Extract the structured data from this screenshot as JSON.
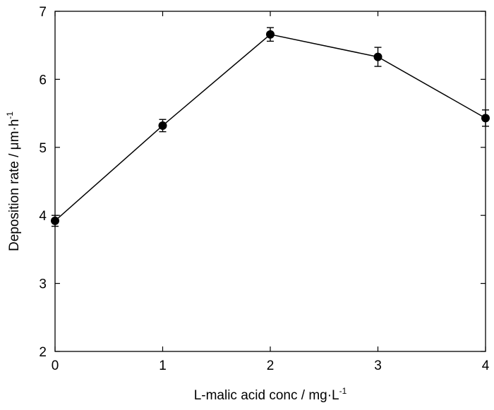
{
  "chart_data": {
    "type": "line",
    "title": "",
    "xlabel": "L-malic acid conc / mg·L",
    "xlabel_superscript": "-1",
    "ylabel": "Deposition rate / μm·h",
    "ylabel_superscript": "-1",
    "xlim": [
      0,
      4
    ],
    "ylim": [
      2,
      7
    ],
    "x_ticks": [
      0,
      1,
      2,
      3,
      4
    ],
    "y_ticks": [
      2,
      3,
      4,
      5,
      6,
      7
    ],
    "grid": false,
    "legend": "none",
    "series": [
      {
        "x": [
          0,
          1,
          2,
          3,
          4
        ],
        "values": [
          3.92,
          5.32,
          6.66,
          6.33,
          5.43
        ],
        "error": [
          0.08,
          0.09,
          0.1,
          0.14,
          0.12
        ],
        "marker": "filled-circle",
        "color": "#000000"
      }
    ]
  }
}
